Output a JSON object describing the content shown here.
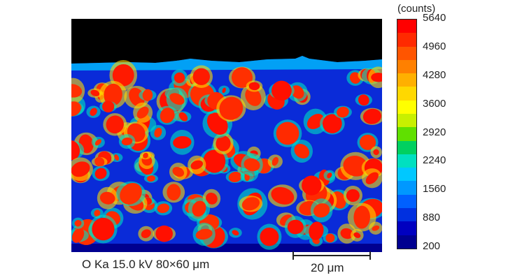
{
  "colorbar": {
    "units": "(counts)",
    "ticks": [
      "5640",
      "4960",
      "4280",
      "3600",
      "2920",
      "2240",
      "1560",
      "880",
      "200"
    ],
    "colors": [
      "#ff0000",
      "#ff2a00",
      "#ff5500",
      "#ff8000",
      "#ffb000",
      "#ffd800",
      "#ffff00",
      "#c8f000",
      "#60e000",
      "#00d060",
      "#00e0c0",
      "#00c8ff",
      "#0098ff",
      "#0060ff",
      "#0030e0",
      "#0000c0",
      "#000090"
    ]
  },
  "caption": "O Ka 15.0 kV 80×60 μm",
  "scalebar": {
    "label": "20 μm"
  },
  "map": {
    "background_color": "#000000",
    "matrix_color": "#0a2bd8",
    "particle_color": "#ff1a00"
  }
}
